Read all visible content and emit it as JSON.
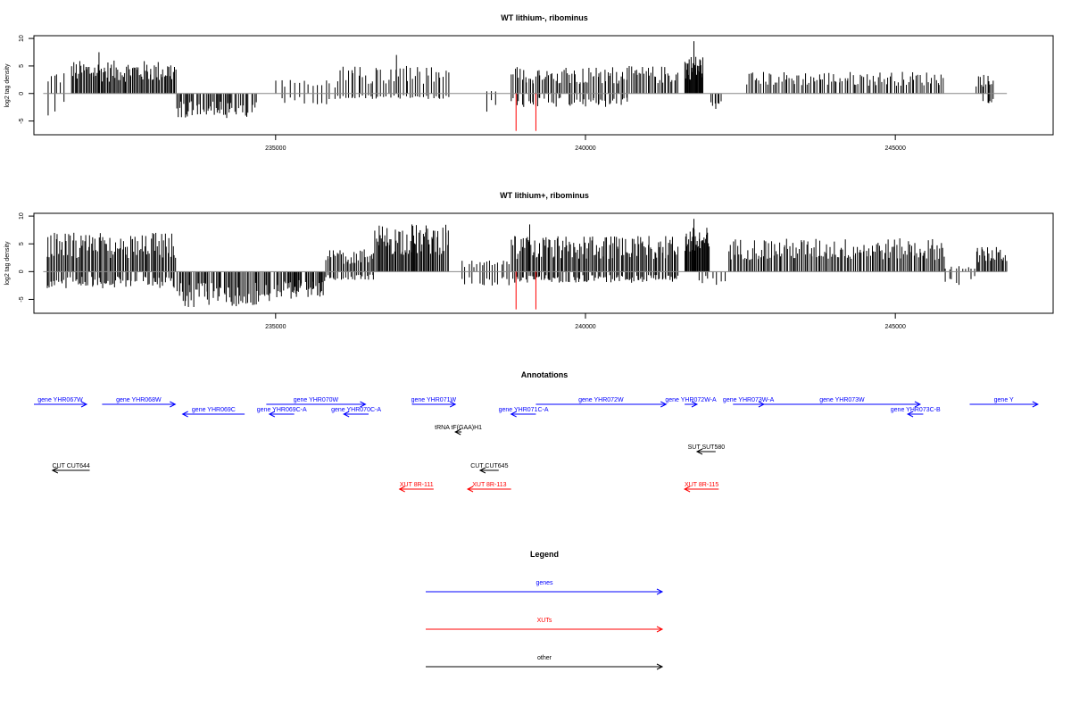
{
  "chart_data": [
    {
      "type": "bar",
      "title": "WT lithium-, ribominus",
      "ylabel": "log2 tag density",
      "xlabel": "",
      "xlim": [
        231100,
        247300
      ],
      "ylim": [
        -7.5,
        10.5
      ],
      "x_ticks": [
        235000,
        240000,
        245000
      ],
      "y_ticks": [
        -5,
        0,
        5,
        10
      ],
      "grid": false,
      "color_positive": "#000000",
      "color_negative": "#000000",
      "color_marker": "#ff0000",
      "baseline_color": "#888888",
      "markers": [
        {
          "x": 238880,
          "y": -6.8
        },
        {
          "x": 239200,
          "y": -6.8
        }
      ],
      "segments": [
        {
          "x": [
            231300,
            231600
          ],
          "y": [
            4.0,
            -4.0
          ],
          "density": 6
        },
        {
          "x": [
            231700,
            233400
          ],
          "y": [
            6.0,
            0.0
          ],
          "density": 90
        },
        {
          "x": [
            233400,
            234700
          ],
          "y": [
            0.0,
            -4.5
          ],
          "density": 70
        },
        {
          "x": [
            235000,
            236000
          ],
          "y": [
            2.5,
            -2.0
          ],
          "density": 14
        },
        {
          "x": [
            236000,
            237800
          ],
          "y": [
            5.0,
            -1.0
          ],
          "density": 45
        },
        {
          "x": [
            238400,
            238600
          ],
          "y": [
            0.5,
            -3.5
          ],
          "density": 3
        },
        {
          "x": [
            238800,
            240700
          ],
          "y": [
            5.0,
            -2.5
          ],
          "density": 70
        },
        {
          "x": [
            240700,
            241500
          ],
          "y": [
            5.0,
            0.0
          ],
          "density": 30
        },
        {
          "x": [
            241600,
            241900
          ],
          "y": [
            7.0,
            0.0
          ],
          "density": 30
        },
        {
          "x": [
            242000,
            242200
          ],
          "y": [
            0.0,
            -3.0
          ],
          "density": 8
        },
        {
          "x": [
            242600,
            245800
          ],
          "y": [
            4.0,
            0.0
          ],
          "density": 100
        },
        {
          "x": [
            246300,
            246600
          ],
          "y": [
            3.5,
            -2.5
          ],
          "density": 12
        }
      ],
      "peaks": [
        {
          "x": 236950,
          "y": 7.0
        },
        {
          "x": 241750,
          "y": 9.5
        },
        {
          "x": 232150,
          "y": 7.5
        }
      ]
    },
    {
      "type": "bar",
      "title": "WT lithium+, ribominus",
      "ylabel": "log2 tag density",
      "xlabel": "",
      "xlim": [
        231100,
        247300
      ],
      "ylim": [
        -7.5,
        10.5
      ],
      "x_ticks": [
        235000,
        240000,
        245000
      ],
      "y_ticks": [
        -5,
        0,
        5,
        10
      ],
      "grid": false,
      "color_positive": "#000000",
      "color_negative": "#000000",
      "color_marker": "#ff0000",
      "baseline_color": "#888888",
      "markers": [
        {
          "x": 238880,
          "y": -6.8
        },
        {
          "x": 239200,
          "y": -6.8
        }
      ],
      "segments": [
        {
          "x": [
            231300,
            233400
          ],
          "y": [
            7.0,
            -3.0
          ],
          "density": 100
        },
        {
          "x": [
            233400,
            235000
          ],
          "y": [
            0.0,
            -6.5
          ],
          "density": 90
        },
        {
          "x": [
            235000,
            235800
          ],
          "y": [
            0.0,
            -5.0
          ],
          "density": 60
        },
        {
          "x": [
            235800,
            236600
          ],
          "y": [
            4.0,
            -1.5
          ],
          "density": 35
        },
        {
          "x": [
            236600,
            237800
          ],
          "y": [
            8.5,
            0.0
          ],
          "density": 70
        },
        {
          "x": [
            238000,
            238800
          ],
          "y": [
            2.0,
            -2.5
          ],
          "density": 18
        },
        {
          "x": [
            238800,
            241500
          ],
          "y": [
            6.5,
            -2.0
          ],
          "density": 130
        },
        {
          "x": [
            241600,
            242000
          ],
          "y": [
            8.0,
            0.0
          ],
          "density": 35
        },
        {
          "x": [
            241800,
            242300
          ],
          "y": [
            0.0,
            -2.5
          ],
          "density": 10
        },
        {
          "x": [
            242300,
            245800
          ],
          "y": [
            6.0,
            0.0
          ],
          "density": 150
        },
        {
          "x": [
            245800,
            246300
          ],
          "y": [
            1.0,
            -2.5
          ],
          "density": 10
        },
        {
          "x": [
            246300,
            246800
          ],
          "y": [
            4.5,
            0.0
          ],
          "density": 25
        }
      ],
      "peaks": [
        {
          "x": 241750,
          "y": 9.5
        },
        {
          "x": 239100,
          "y": 8.5
        },
        {
          "x": 237200,
          "y": 8.5
        }
      ]
    }
  ],
  "annotations": {
    "title": "Annotations",
    "xlim": [
      231100,
      247300
    ],
    "items": [
      {
        "label": "gene YHR067W",
        "x1": 231100,
        "x2": 231950,
        "row": 0,
        "dir": 1,
        "color": "#0000ff"
      },
      {
        "label": "gene YHR068W",
        "x1": 232200,
        "x2": 233380,
        "row": 0,
        "dir": 1,
        "color": "#0000ff"
      },
      {
        "label": "gene YHR069C",
        "x1": 233500,
        "x2": 234500,
        "row": 1,
        "dir": -1,
        "color": "#0000ff"
      },
      {
        "label": "gene YHR070W",
        "x1": 234850,
        "x2": 236450,
        "row": 0,
        "dir": 1,
        "color": "#0000ff"
      },
      {
        "label": "gene YHR069C-A",
        "x1": 234900,
        "x2": 235300,
        "row": 1,
        "dir": -1,
        "color": "#0000ff"
      },
      {
        "label": "gene YHR070C-A",
        "x1": 236100,
        "x2": 236500,
        "row": 1,
        "dir": -1,
        "color": "#0000ff"
      },
      {
        "label": "gene YHR071W",
        "x1": 237200,
        "x2": 237900,
        "row": 0,
        "dir": 1,
        "color": "#0000ff"
      },
      {
        "label": "gene YHR071C-A",
        "x1": 238800,
        "x2": 239200,
        "row": 1,
        "dir": -1,
        "color": "#0000ff"
      },
      {
        "label": "gene YHR072W",
        "x1": 239200,
        "x2": 241300,
        "row": 0,
        "dir": 1,
        "color": "#0000ff"
      },
      {
        "label": "gene YHR072W-A",
        "x1": 241600,
        "x2": 241800,
        "row": 0,
        "dir": 1,
        "color": "#0000ff"
      },
      {
        "label": "gene YHR073W-A",
        "x1": 242380,
        "x2": 242880,
        "row": 0,
        "dir": 1,
        "color": "#0000ff"
      },
      {
        "label": "gene YHR073W",
        "x1": 242880,
        "x2": 245400,
        "row": 0,
        "dir": 1,
        "color": "#0000ff"
      },
      {
        "label": "gene YHR073C-B",
        "x1": 245200,
        "x2": 245450,
        "row": 1,
        "dir": -1,
        "color": "#0000ff"
      },
      {
        "label": "gene Y",
        "x1": 246200,
        "x2": 247300,
        "row": 0,
        "dir": 1,
        "color": "#0000ff"
      },
      {
        "label": "tRNA tF(GAA)H1",
        "x1": 237900,
        "x2": 238000,
        "row": 2,
        "dir": -1,
        "color": "#000000"
      },
      {
        "label": "SUT SUT580",
        "x1": 241800,
        "x2": 242100,
        "row": 3,
        "dir": -1,
        "color": "#000000"
      },
      {
        "label": "CUT CUT644",
        "x1": 231400,
        "x2": 232000,
        "row": 4,
        "dir": -1,
        "color": "#000000"
      },
      {
        "label": "CUT CUT645",
        "x1": 238300,
        "x2": 238600,
        "row": 4,
        "dir": -1,
        "color": "#000000"
      },
      {
        "label": "XUT 8R-111",
        "x1": 237000,
        "x2": 237550,
        "row": 5,
        "dir": -1,
        "color": "#ff0000"
      },
      {
        "label": "XUT 8R-113",
        "x1": 238100,
        "x2": 238800,
        "row": 5,
        "dir": -1,
        "color": "#ff0000"
      },
      {
        "label": "XUT 8R-115",
        "x1": 241600,
        "x2": 242150,
        "row": 5,
        "dir": -1,
        "color": "#ff0000"
      }
    ]
  },
  "legend": {
    "title": "Legend",
    "entries": [
      {
        "label": "genes",
        "color": "#0000ff"
      },
      {
        "label": "XUTs",
        "color": "#ff0000"
      },
      {
        "label": "other",
        "color": "#000000"
      }
    ]
  }
}
